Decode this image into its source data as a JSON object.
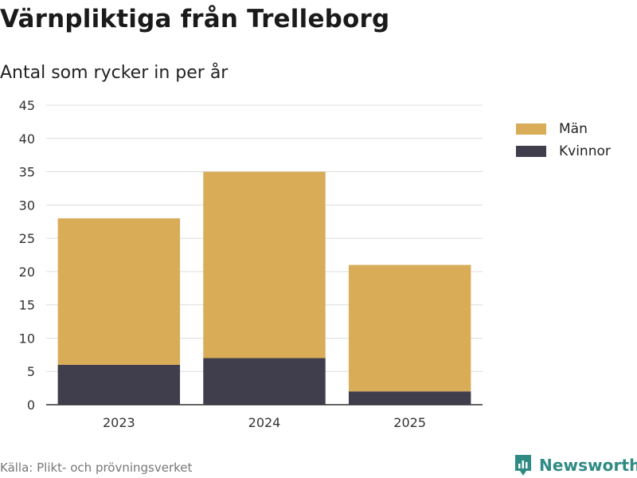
{
  "title": "Värnpliktiga från Trelleborg",
  "subtitle": "Antal som rycker in per år",
  "source": "Källa: Plikt- och prövningsverket",
  "brand": "Newsworthy",
  "colors": {
    "men": "#d9ac58",
    "women": "#403e4c",
    "grid": "#dddddd",
    "axis": "#333333",
    "brand": "#2f8a84"
  },
  "legend": [
    {
      "label": "Män",
      "color": "#d9ac58"
    },
    {
      "label": "Kvinnor",
      "color": "#403e4c"
    }
  ],
  "chart_data": {
    "type": "bar",
    "stacked": true,
    "title": "Värnpliktiga från Trelleborg",
    "subtitle": "Antal som rycker in per år",
    "categories": [
      "2023",
      "2024",
      "2025"
    ],
    "series": [
      {
        "name": "Kvinnor",
        "values": [
          6,
          7,
          2
        ]
      },
      {
        "name": "Män",
        "values": [
          22,
          28,
          19
        ]
      }
    ],
    "ylim": [
      0,
      45
    ],
    "yticks": [
      0,
      5,
      10,
      15,
      20,
      25,
      30,
      35,
      40,
      45
    ],
    "xlabel": "",
    "ylabel": "",
    "grid": true,
    "legend_position": "right"
  }
}
